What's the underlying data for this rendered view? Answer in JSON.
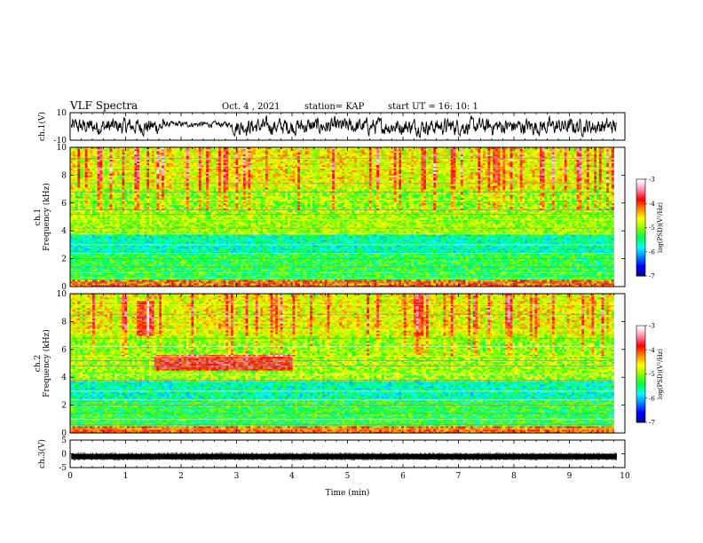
{
  "header": {
    "title": "VLF Spectra",
    "date": "Oct. 4 , 2021",
    "station": "station= KAP",
    "start": "start  UT =   16: 10: 1"
  },
  "chart_data": [
    {
      "type": "line",
      "panel": "ch1-waveform",
      "ylabel": "ch.1(V)",
      "ylim": [
        -10,
        10
      ],
      "yticks": [
        "10",
        "-10"
      ],
      "xlim": [
        0,
        10
      ],
      "color": "#000000",
      "note_trace": "noisy waveform, amplitude roughly +/-5 V; calmer stretch near 2-3 min"
    },
    {
      "type": "heatmap",
      "panel": "ch1-spectrogram",
      "ylabel": "ch.1\nFrequency (kHz)",
      "ylim": [
        0,
        10
      ],
      "yticks": [
        "0",
        "2",
        "4",
        "6",
        "8",
        "10"
      ],
      "xlim": [
        0,
        10
      ],
      "data_end_min": 9.8,
      "colorbar": {
        "label": "log(PSD)(V²/Hz)",
        "ticks": [
          "-3",
          "-4",
          "-5",
          "-6",
          "-7"
        ],
        "range": [
          -7,
          -3
        ],
        "colors": [
          "#000088",
          "#0000ff",
          "#0088ff",
          "#00ffff",
          "#00ff44",
          "#88ff00",
          "#ffff00",
          "#ff8800",
          "#ff0000",
          "#ff88aa",
          "#ffffff"
        ]
      }
    },
    {
      "type": "heatmap",
      "panel": "ch2-spectrogram",
      "ylabel": "ch.2\nFrequency (kHz)",
      "ylim": [
        0,
        10
      ],
      "yticks": [
        "0",
        "2",
        "4",
        "6",
        "8",
        "10"
      ],
      "xlim": [
        0,
        10
      ],
      "data_end_min": 9.8,
      "colorbar": {
        "label": "log(PSD)(V²/Hz)",
        "ticks": [
          "-3",
          "-4",
          "-5",
          "-6",
          "-7"
        ],
        "range": [
          -7,
          -3
        ],
        "colors": [
          "#000088",
          "#0000ff",
          "#0088ff",
          "#00ffff",
          "#00ff44",
          "#88ff00",
          "#ffff00",
          "#ff8800",
          "#ff0000",
          "#ff88aa",
          "#ffffff"
        ]
      }
    },
    {
      "type": "line",
      "panel": "ch3-waveform",
      "ylabel": "ch.3(V)",
      "ylim": [
        -5,
        5
      ],
      "yticks": [
        "5",
        "0",
        "-5"
      ],
      "xlim": [
        0,
        10
      ],
      "xlabel": "Time  (min)",
      "xticks": [
        "0",
        "1",
        "2",
        "3",
        "4",
        "5",
        "6",
        "7",
        "8",
        "9",
        "10"
      ],
      "color": "#000000",
      "note_trace": "thick flat band near -1 V across the full record"
    }
  ]
}
